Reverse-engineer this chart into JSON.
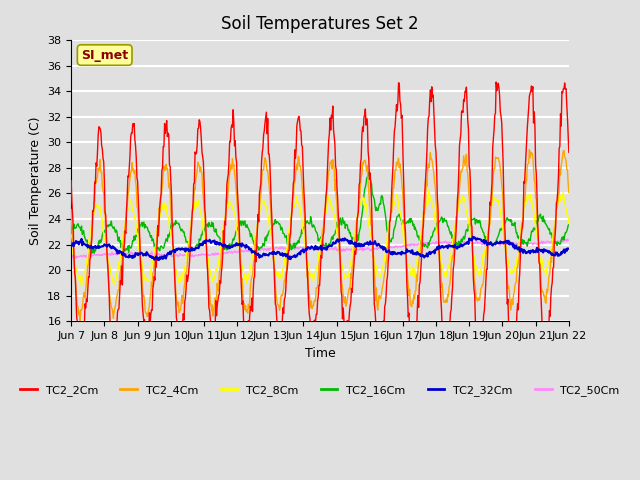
{
  "title": "Soil Temperatures Set 2",
  "xlabel": "Time",
  "ylabel": "Soil Temperature (C)",
  "ylim": [
    16,
    38
  ],
  "yticks": [
    16,
    18,
    20,
    22,
    24,
    26,
    28,
    30,
    32,
    34,
    36,
    38
  ],
  "x_labels": [
    "Jun 7",
    "Jun 8",
    "Jun 9",
    "Jun 10",
    "Jun 11",
    "Jun 12",
    "Jun 13",
    "Jun 14",
    "Jun 15",
    "Jun 16",
    "Jun 17",
    "Jun 18",
    "Jun 19",
    "Jun 20",
    "Jun 21",
    "Jun 22"
  ],
  "annotation_text": "SI_met",
  "annotation_color": "#8B0000",
  "annotation_bg": "#FFFF99",
  "annotation_edge": "#999900",
  "line_colors": {
    "TC2_2Cm": "#FF0000",
    "TC2_4Cm": "#FFA500",
    "TC2_8Cm": "#FFFF00",
    "TC2_16Cm": "#00BB00",
    "TC2_32Cm": "#0000CC",
    "TC2_50Cm": "#FF88FF"
  },
  "background_color": "#E0E0E0",
  "plot_bg_color": "#E0E0E0",
  "grid_color": "#FFFFFF",
  "title_fontsize": 12,
  "label_fontsize": 9,
  "tick_fontsize": 8
}
